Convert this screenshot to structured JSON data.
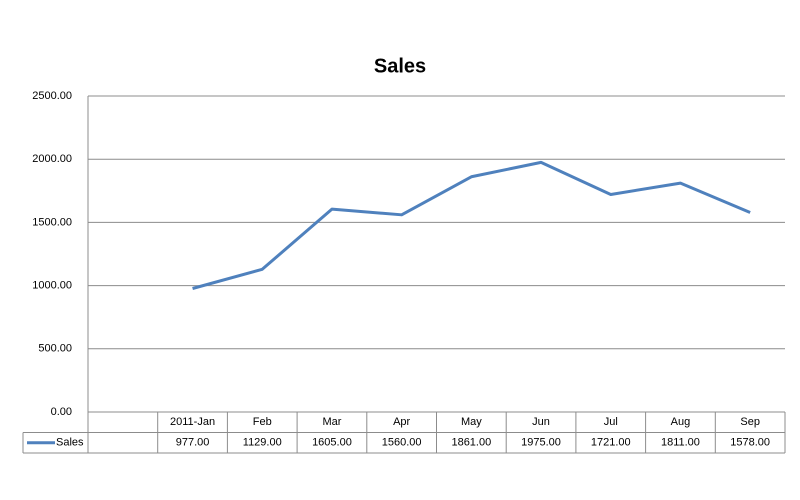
{
  "chart_data": {
    "type": "line",
    "title": "Sales",
    "categories": [
      null,
      "2011-Jan",
      "Feb",
      "Mar",
      "Apr",
      "May",
      "Jun",
      "Jul",
      "Aug",
      "Sep"
    ],
    "series": [
      {
        "name": "Sales",
        "color": "#4f81bd",
        "values": [
          null,
          977,
          1129,
          1605,
          1560,
          1861,
          1975,
          1721,
          1811,
          1578
        ],
        "value_labels": [
          null,
          "977.00",
          "1129.00",
          "1605.00",
          "1560.00",
          "1861.00",
          "1975.00",
          "1721.00",
          "1811.00",
          "1578.00"
        ]
      }
    ],
    "ylim": [
      0,
      2500
    ],
    "yticks": [
      {
        "value": 0,
        "label": "0.00"
      },
      {
        "value": 500,
        "label": "500.00"
      },
      {
        "value": 1000,
        "label": "1000.00"
      },
      {
        "value": 1500,
        "label": "1500.00"
      },
      {
        "value": 2000,
        "label": "2000.00"
      },
      {
        "value": 2500,
        "label": "2500.00"
      }
    ],
    "grid": true
  }
}
